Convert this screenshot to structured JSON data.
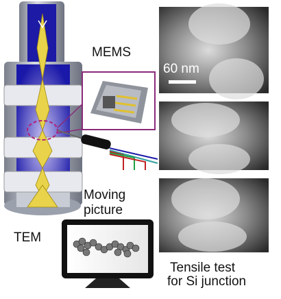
{
  "labels": {
    "mems": "MEMS",
    "scale": "60 nm",
    "moving": [
      "Moving",
      "picture"
    ],
    "tem": "TEM",
    "caption": [
      "Tensile test",
      "for Si junction"
    ]
  }
}
